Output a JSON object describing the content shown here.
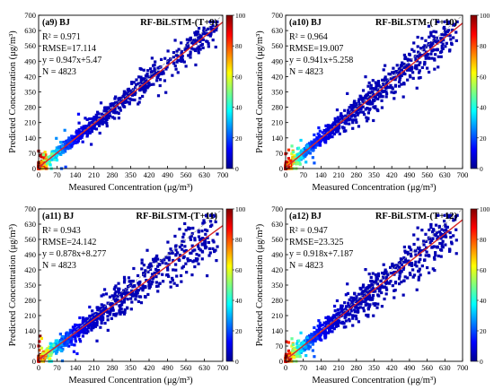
{
  "figure": {
    "panels": [
      {
        "region": "BJ",
        "panel_id": "(a9)",
        "model": "RF-BiLSTM-(T+9)",
        "r2": "0.971",
        "rmse": "17.114",
        "fit": "0.947x+5.47",
        "n": "4823"
      },
      {
        "region": "BJ",
        "panel_id": "(a10)",
        "model": "RF-BiLSTM-(T+10)",
        "r2": "0.964",
        "rmse": "19.007",
        "fit": "0.941x+5.258",
        "n": "4823"
      },
      {
        "region": "BJ",
        "panel_id": "(a11)",
        "model": "RF-BiLSTM-(T+11)",
        "r2": "0.943",
        "rmse": "24.142",
        "fit": "0.878x+8.277",
        "n": "4823"
      },
      {
        "region": "BJ",
        "panel_id": "(a12)",
        "model": "RF-BiLSTM-(T+12)",
        "r2": "0.947",
        "rmse": "23.325",
        "fit": "0.918x+7.187",
        "n": "4823"
      }
    ],
    "xlabel": "Measured Concentration (μg/m³)",
    "ylabel": "Predicted Concentration (μg/m³)",
    "r2_label": "R² = ",
    "rmse_label": "RMSE=",
    "fit_label": "y = ",
    "n_label": "N = ",
    "colorbar_ticks": [
      "0",
      "20",
      "40",
      "60",
      "80",
      "100"
    ],
    "axis_ticks": [
      "0",
      "70",
      "140",
      "210",
      "280",
      "350",
      "420",
      "490",
      "560",
      "630",
      "700"
    ]
  },
  "chart_data": [
    {
      "type": "scatter",
      "title": "(a9) BJ RF-BiLSTM-(T+9)",
      "xlabel": "Measured Concentration (μg/m³)",
      "ylabel": "Predicted Concentration (μg/m³)",
      "xlim": [
        0,
        700
      ],
      "ylim": [
        0,
        700
      ],
      "x_ticks": [
        0,
        70,
        140,
        210,
        280,
        350,
        420,
        490,
        560,
        630,
        700
      ],
      "y_ticks": [
        0,
        70,
        140,
        210,
        280,
        350,
        420,
        490,
        560,
        630,
        700
      ],
      "colorbar": {
        "range": [
          0,
          100
        ],
        "ticks": [
          0,
          20,
          40,
          60,
          80,
          100
        ],
        "colormap": "jet"
      },
      "stats": {
        "R2": 0.971,
        "RMSE": 17.114,
        "slope": 0.947,
        "intercept": 5.47,
        "N": 4823
      },
      "lines": [
        {
          "kind": "fit",
          "slope": 0.947,
          "intercept": 5.47,
          "color": "#d62728"
        }
      ],
      "points_summary": {
        "x_range": [
          0,
          680
        ],
        "y_range": [
          0,
          660
        ]
      }
    },
    {
      "type": "scatter",
      "title": "(a10) BJ RF-BiLSTM-(T+10)",
      "xlabel": "Measured Concentration (μg/m³)",
      "ylabel": "Predicted Concentration (μg/m³)",
      "xlim": [
        0,
        700
      ],
      "ylim": [
        0,
        700
      ],
      "x_ticks": [
        0,
        70,
        140,
        210,
        280,
        350,
        420,
        490,
        560,
        630,
        700
      ],
      "y_ticks": [
        0,
        70,
        140,
        210,
        280,
        350,
        420,
        490,
        560,
        630,
        700
      ],
      "colorbar": {
        "range": [
          0,
          100
        ],
        "ticks": [
          0,
          20,
          40,
          60,
          80,
          100
        ],
        "colormap": "jet"
      },
      "stats": {
        "R2": 0.964,
        "RMSE": 19.007,
        "slope": 0.941,
        "intercept": 5.258,
        "N": 4823
      },
      "lines": [
        {
          "kind": "fit",
          "slope": 0.941,
          "intercept": 5.258,
          "color": "#d62728"
        }
      ],
      "points_summary": {
        "x_range": [
          0,
          690
        ],
        "y_range": [
          0,
          640
        ]
      }
    },
    {
      "type": "scatter",
      "title": "(a11) BJ RF-BiLSTM-(T+11)",
      "xlabel": "Measured Concentration (μg/m³)",
      "ylabel": "Predicted Concentration (μg/m³)",
      "xlim": [
        0,
        700
      ],
      "ylim": [
        0,
        700
      ],
      "x_ticks": [
        0,
        70,
        140,
        210,
        280,
        350,
        420,
        490,
        560,
        630,
        700
      ],
      "y_ticks": [
        0,
        70,
        140,
        210,
        280,
        350,
        420,
        490,
        560,
        630,
        700
      ],
      "colorbar": {
        "range": [
          0,
          100
        ],
        "ticks": [
          0,
          20,
          40,
          60,
          80,
          100
        ],
        "colormap": "jet"
      },
      "stats": {
        "R2": 0.943,
        "RMSE": 24.142,
        "slope": 0.878,
        "intercept": 8.277,
        "N": 4823
      },
      "lines": [
        {
          "kind": "fit",
          "slope": 0.878,
          "intercept": 8.277,
          "color": "#d62728"
        }
      ],
      "points_summary": {
        "x_range": [
          0,
          690
        ],
        "y_range": [
          0,
          560
        ]
      }
    },
    {
      "type": "scatter",
      "title": "(a12) BJ RF-BiLSTM-(T+12)",
      "xlabel": "Measured Concentration (μg/m³)",
      "ylabel": "Predicted Concentration (μg/m³)",
      "xlim": [
        0,
        700
      ],
      "ylim": [
        0,
        700
      ],
      "x_ticks": [
        0,
        70,
        140,
        210,
        280,
        350,
        420,
        490,
        560,
        630,
        700
      ],
      "y_ticks": [
        0,
        70,
        140,
        210,
        280,
        350,
        420,
        490,
        560,
        630,
        700
      ],
      "colorbar": {
        "range": [
          0,
          100
        ],
        "ticks": [
          0,
          20,
          40,
          60,
          80,
          100
        ],
        "colormap": "jet"
      },
      "stats": {
        "R2": 0.947,
        "RMSE": 23.325,
        "slope": 0.918,
        "intercept": 7.187,
        "N": 4823
      },
      "lines": [
        {
          "kind": "fit",
          "slope": 0.918,
          "intercept": 7.187,
          "color": "#d62728"
        }
      ],
      "points_summary": {
        "x_range": [
          0,
          690
        ],
        "y_range": [
          0,
          590
        ]
      }
    }
  ]
}
